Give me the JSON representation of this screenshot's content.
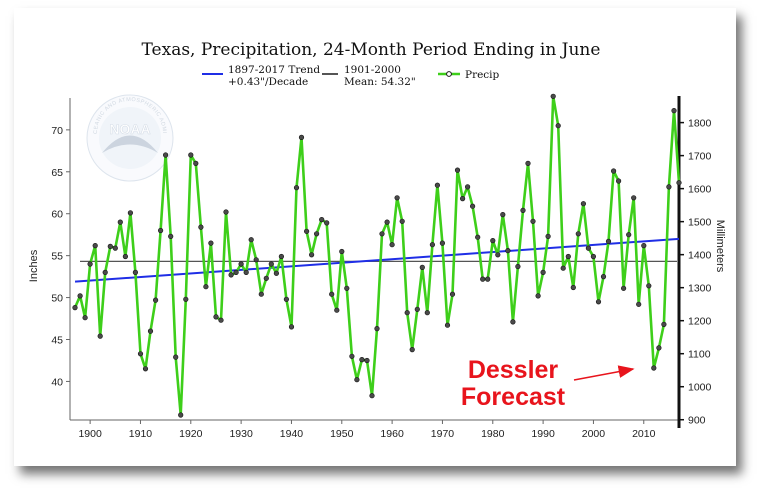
{
  "chart_data": {
    "type": "line",
    "title": "Texas, Precipitation, 24-Month Period Ending in June",
    "ylabel_left": "Inches",
    "ylabel_right": "Millimeters",
    "xlim": [
      1896,
      2017
    ],
    "ylim": [
      35.4,
      73.8
    ],
    "x_ticks": [
      "1900",
      "1910",
      "1920",
      "1930",
      "1940",
      "1950",
      "1960",
      "1970",
      "1980",
      "1990",
      "2000",
      "2010"
    ],
    "y_ticks_left": [
      "40",
      "45",
      "50",
      "55",
      "60",
      "65",
      "70"
    ],
    "y_ticks_right": [
      "900",
      "1000",
      "1100",
      "1200",
      "1300",
      "1400",
      "1500",
      "1600",
      "1700",
      "1800"
    ],
    "legend": [
      {
        "label_line1": "1897-2017 Trend",
        "label_line2": "+0.43\"/Decade",
        "color": "#1f2ee6"
      },
      {
        "label_line1": "1901-2000",
        "label_line2": "Mean: 54.32\"",
        "color": "#555555"
      },
      {
        "label_line1": "Precip",
        "label_line2": "",
        "color": "#3ecf1a"
      }
    ],
    "trend": {
      "x": [
        1897,
        2017
      ],
      "y": [
        51.9,
        57.0
      ]
    },
    "mean": 54.32,
    "series": [
      {
        "name": "Precip",
        "x": [
          1897,
          1898,
          1899,
          1900,
          1901,
          1902,
          1903,
          1904,
          1905,
          1906,
          1907,
          1908,
          1909,
          1910,
          1911,
          1912,
          1913,
          1914,
          1915,
          1916,
          1917,
          1918,
          1919,
          1920,
          1921,
          1922,
          1923,
          1924,
          1925,
          1926,
          1927,
          1928,
          1929,
          1930,
          1931,
          1932,
          1933,
          1934,
          1935,
          1936,
          1937,
          1938,
          1939,
          1940,
          1941,
          1942,
          1943,
          1944,
          1945,
          1946,
          1947,
          1948,
          1949,
          1950,
          1951,
          1952,
          1953,
          1954,
          1955,
          1956,
          1957,
          1958,
          1959,
          1960,
          1961,
          1962,
          1963,
          1964,
          1965,
          1966,
          1967,
          1968,
          1969,
          1970,
          1971,
          1972,
          1973,
          1974,
          1975,
          1976,
          1977,
          1978,
          1979,
          1980,
          1981,
          1982,
          1983,
          1984,
          1985,
          1986,
          1987,
          1988,
          1989,
          1990,
          1991,
          1992,
          1993,
          1994,
          1995,
          1996,
          1997,
          1998,
          1999,
          2000,
          2001,
          2002,
          2003,
          2004,
          2005,
          2006,
          2007,
          2008,
          2009,
          2010,
          2011,
          2012,
          2013,
          2014,
          2015,
          2016,
          2017
        ],
        "y": [
          48.8,
          50.2,
          47.6,
          54.0,
          56.2,
          45.4,
          53.0,
          56.1,
          55.9,
          59.0,
          54.9,
          60.1,
          53.0,
          43.3,
          41.5,
          46.0,
          49.7,
          58.0,
          67.0,
          57.3,
          42.9,
          36.0,
          49.8,
          67.0,
          66.0,
          58.4,
          51.3,
          56.5,
          47.7,
          47.3,
          60.2,
          52.7,
          53.0,
          54.0,
          53.0,
          56.9,
          54.5,
          50.4,
          52.3,
          54.0,
          52.9,
          54.9,
          49.8,
          46.5,
          63.1,
          69.1,
          57.9,
          55.1,
          57.6,
          59.3,
          58.9,
          50.4,
          48.5,
          55.5,
          51.1,
          43.0,
          40.2,
          42.6,
          42.5,
          38.3,
          46.3,
          57.6,
          59.0,
          56.3,
          61.9,
          59.1,
          48.2,
          43.8,
          48.6,
          53.6,
          48.2,
          56.3,
          63.4,
          56.5,
          46.7,
          50.4,
          65.2,
          61.8,
          63.2,
          60.9,
          57.2,
          52.2,
          52.2,
          56.8,
          55.1,
          59.9,
          55.6,
          47.1,
          53.7,
          60.4,
          66.0,
          59.1,
          50.2,
          53.0,
          57.3,
          74.0,
          70.5,
          53.5,
          54.9,
          51.2,
          57.6,
          61.2,
          55.9,
          54.9,
          49.5,
          52.5,
          56.7,
          65.1,
          63.9,
          51.1,
          57.5,
          61.9,
          49.2,
          56.2,
          51.4,
          41.6,
          44.0,
          46.8,
          63.2,
          72.3,
          63.7
        ]
      }
    ],
    "annotation": {
      "line1": "Dessler",
      "line2": "Forecast",
      "color": "#e8141c"
    },
    "logo": {
      "text": "NOAA",
      "ring_text_top": "NATIONAL OCEANIC AND ATMOSPHERIC ADMINISTRATION",
      "ring_text_bottom": "U.S. DEPARTMENT OF COMMERCE"
    }
  }
}
